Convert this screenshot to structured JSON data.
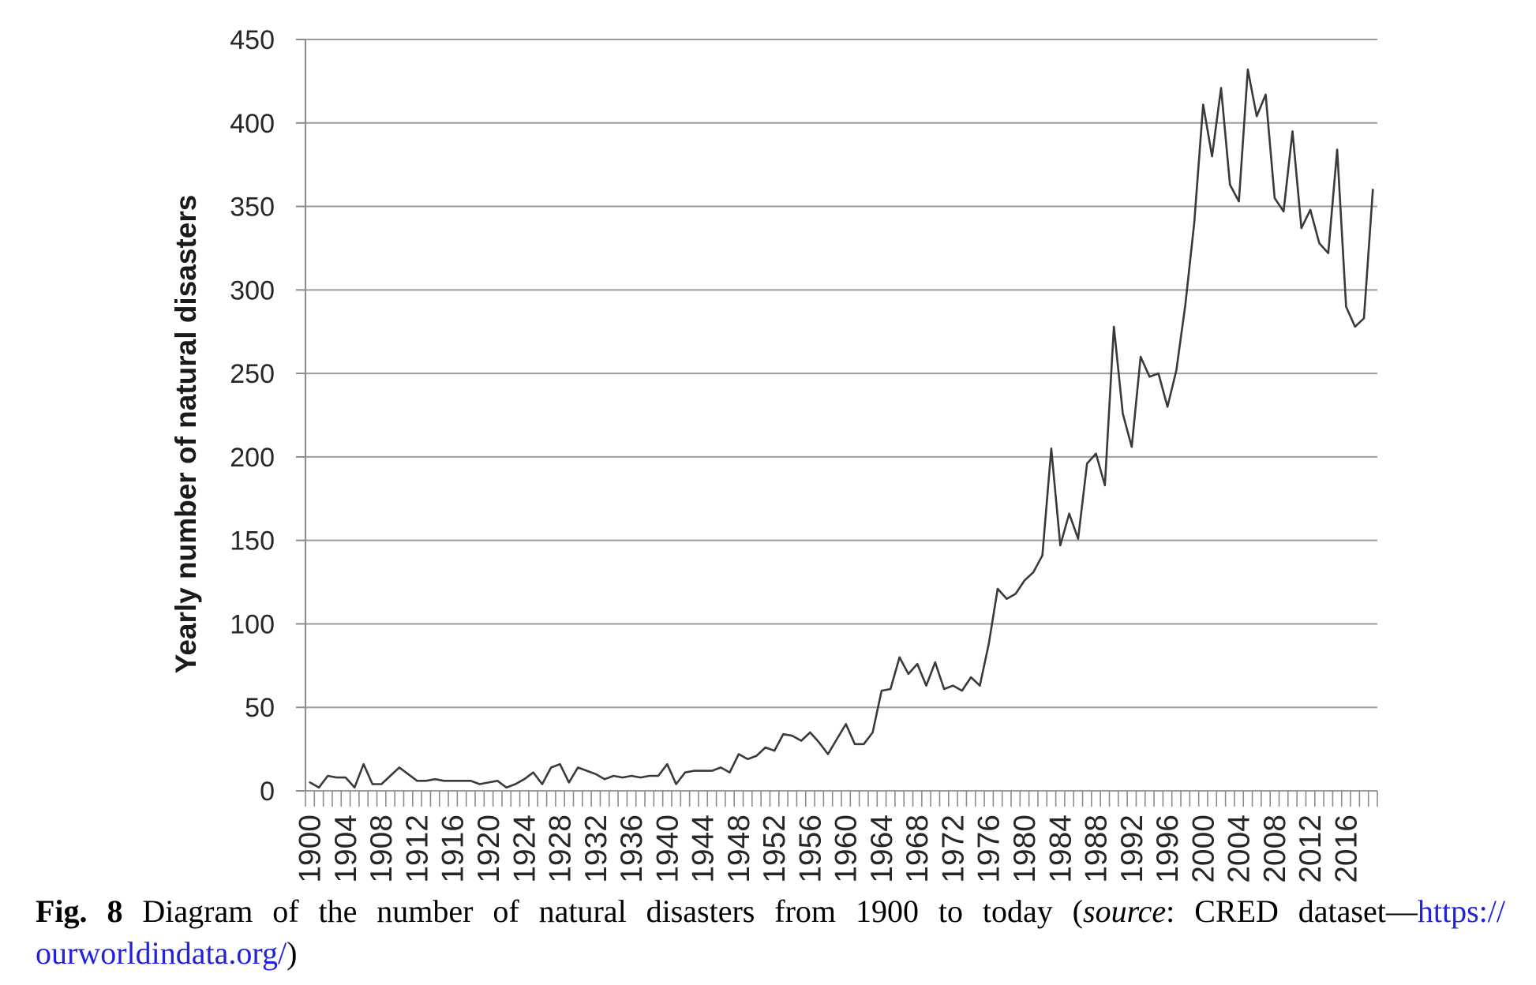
{
  "figure": {
    "y_axis_title": "Yearly number of natural disasters",
    "caption": {
      "fig_label": "Fig. 8",
      "body": " Diagram of the number of natural disasters from 1900 to today (",
      "source_word": "source",
      "after_source": ": CRED dataset—",
      "link_part1": "https://",
      "link_part2": "ourworldindata.org/",
      "closing_paren": ")",
      "link_color": "#2222dd"
    }
  },
  "chart_data": {
    "type": "line",
    "title": "",
    "xlabel": "",
    "ylabel": "Yearly number of natural disasters",
    "x_start": 1900,
    "x_end": 2019,
    "ylim": [
      0,
      450
    ],
    "grid": true,
    "legend": "none",
    "line_color": "#3a3a3a",
    "grid_color": "#9b9b9b",
    "axis_color": "#8c8c8c",
    "tick_label_color": "#262626",
    "y_ticks": [
      0,
      50,
      100,
      150,
      200,
      250,
      300,
      350,
      400,
      450
    ],
    "x_tick_labels": [
      "1900",
      "1904",
      "1908",
      "1912",
      "1916",
      "1920",
      "1924",
      "1928",
      "1932",
      "1936",
      "1940",
      "1944",
      "1948",
      "1952",
      "1956",
      "1960",
      "1964",
      "1968",
      "1972",
      "1976",
      "1980",
      "1984",
      "1988",
      "1992",
      "1996",
      "2000",
      "2004",
      "2008",
      "2012",
      "2016"
    ],
    "years": [
      1900,
      1901,
      1902,
      1903,
      1904,
      1905,
      1906,
      1907,
      1908,
      1909,
      1910,
      1911,
      1912,
      1913,
      1914,
      1915,
      1916,
      1917,
      1918,
      1919,
      1920,
      1921,
      1922,
      1923,
      1924,
      1925,
      1926,
      1927,
      1928,
      1929,
      1930,
      1931,
      1932,
      1933,
      1934,
      1935,
      1936,
      1937,
      1938,
      1939,
      1940,
      1941,
      1942,
      1943,
      1944,
      1945,
      1946,
      1947,
      1948,
      1949,
      1950,
      1951,
      1952,
      1953,
      1954,
      1955,
      1956,
      1957,
      1958,
      1959,
      1960,
      1961,
      1962,
      1963,
      1964,
      1965,
      1966,
      1967,
      1968,
      1969,
      1970,
      1971,
      1972,
      1973,
      1974,
      1975,
      1976,
      1977,
      1978,
      1979,
      1980,
      1981,
      1982,
      1983,
      1984,
      1985,
      1986,
      1987,
      1988,
      1989,
      1990,
      1991,
      1992,
      1993,
      1994,
      1995,
      1996,
      1997,
      1998,
      1999,
      2000,
      2001,
      2002,
      2003,
      2004,
      2005,
      2006,
      2007,
      2008,
      2009,
      2010,
      2011,
      2012,
      2013,
      2014,
      2015,
      2016,
      2017,
      2018,
      2019
    ],
    "values": [
      5,
      2,
      9,
      8,
      8,
      2,
      16,
      4,
      4,
      9,
      14,
      10,
      6,
      6,
      7,
      6,
      6,
      6,
      6,
      4,
      5,
      6,
      2,
      4,
      7,
      11,
      4,
      14,
      16,
      5,
      14,
      12,
      10,
      7,
      9,
      8,
      9,
      8,
      9,
      9,
      16,
      4,
      11,
      12,
      12,
      12,
      14,
      11,
      22,
      19,
      21,
      26,
      24,
      34,
      33,
      30,
      35,
      29,
      22,
      31,
      40,
      28,
      28,
      35,
      60,
      61,
      80,
      70,
      76,
      63,
      77,
      61,
      63,
      60,
      68,
      63,
      88,
      121,
      115,
      118,
      126,
      131,
      141,
      205,
      147,
      166,
      151,
      196,
      202,
      183,
      278,
      226,
      206,
      260,
      248,
      250,
      230,
      252,
      291,
      340,
      411,
      380,
      421,
      363,
      353,
      432,
      404,
      417,
      355,
      347,
      395,
      337,
      348,
      328,
      322,
      384,
      290,
      278,
      283,
      360
    ]
  }
}
